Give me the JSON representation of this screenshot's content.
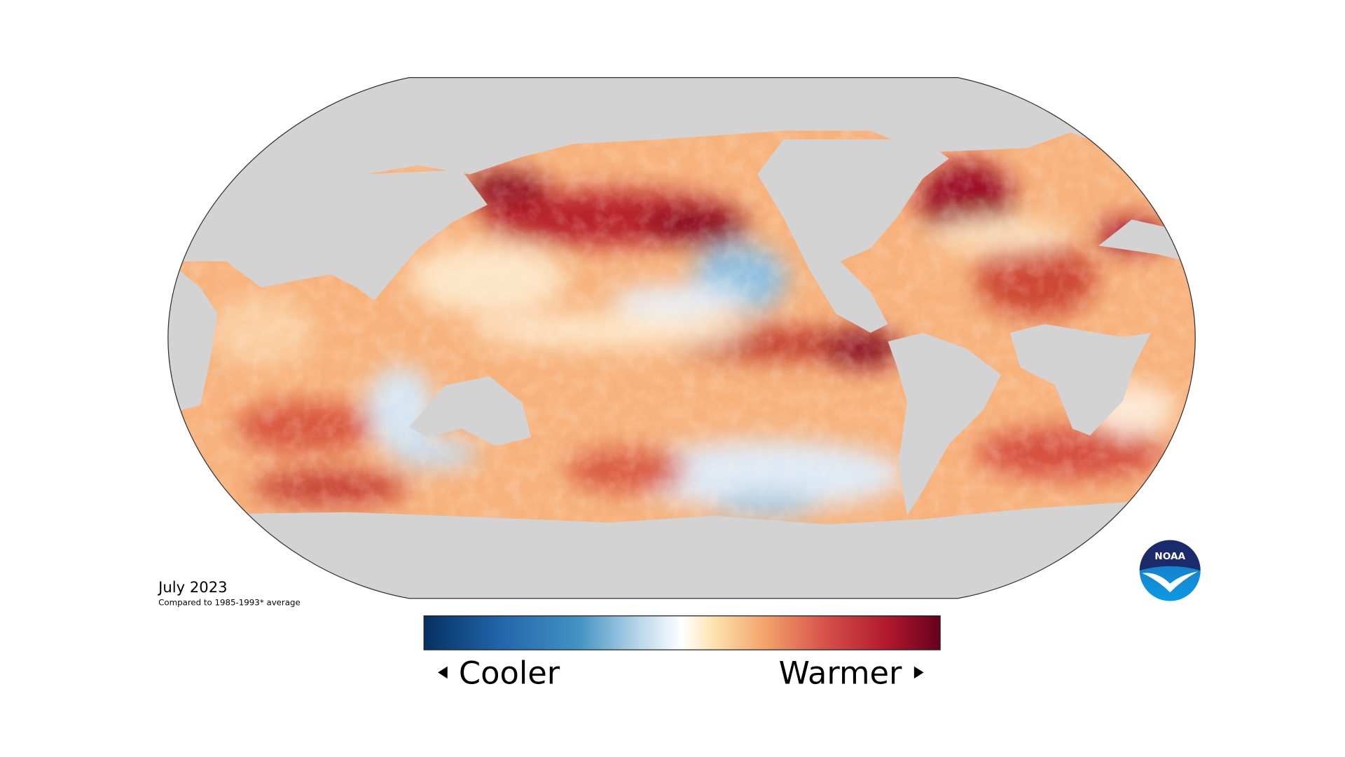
{
  "caption": {
    "title": "July 2023",
    "subtitle": "Compared to 1985-1993* average"
  },
  "legend": {
    "low": "Cooler",
    "high": "Warmer"
  },
  "logo": {
    "text": "NOAA"
  }
}
